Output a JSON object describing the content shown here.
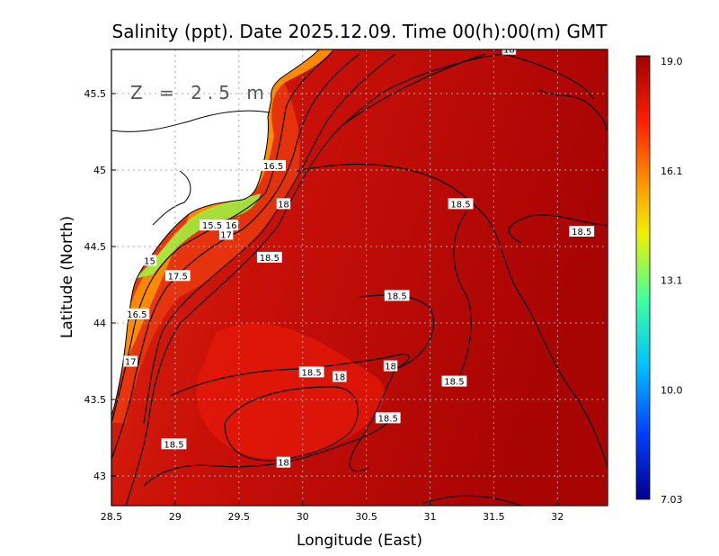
{
  "title": "Salinity (ppt). Date 2025.12.09. Time 00(h):00(m) GMT",
  "depth_label": "Z = 2.5 m",
  "chart_data": {
    "type": "contour-map",
    "variable": "Salinity (ppt)",
    "xlabel": "Longitude (East)",
    "ylabel": "Latitude (North)",
    "xlim": [
      28.5,
      32.4
    ],
    "ylim": [
      42.8,
      45.8
    ],
    "xticks": [
      {
        "v": 28.5,
        "label": "28.5"
      },
      {
        "v": 29,
        "label": "29"
      },
      {
        "v": 29.5,
        "label": "29.5"
      },
      {
        "v": 30,
        "label": "30"
      },
      {
        "v": 30.5,
        "label": "30.5"
      },
      {
        "v": 31,
        "label": "31"
      },
      {
        "v": 31.5,
        "label": "31.5"
      },
      {
        "v": 32,
        "label": "32"
      }
    ],
    "yticks": [
      {
        "v": 43,
        "label": "43"
      },
      {
        "v": 43.5,
        "label": "43.5"
      },
      {
        "v": 44,
        "label": "44"
      },
      {
        "v": 44.5,
        "label": "44.5"
      },
      {
        "v": 45,
        "label": "45"
      },
      {
        "v": 45.5,
        "label": "45.5"
      }
    ],
    "grid": true,
    "colorbar": {
      "min": 7.03,
      "max": 19.0,
      "labels": [
        "19.0",
        "16.1",
        "13.1",
        "10.0",
        "7.03"
      ],
      "colors": [
        "#000090",
        "#0050ff",
        "#00d0ff",
        "#60ff90",
        "#f0f000",
        "#ff9000",
        "#ff2000",
        "#a00000"
      ]
    },
    "contour_labels": [
      {
        "text": "18",
        "lon": 31.62,
        "lat": 45.79
      },
      {
        "text": "16.5",
        "lon": 29.77,
        "lat": 45.03
      },
      {
        "text": "18",
        "lon": 29.85,
        "lat": 44.78
      },
      {
        "text": "18.5",
        "lon": 31.24,
        "lat": 44.78
      },
      {
        "text": "18.5",
        "lon": 32.19,
        "lat": 44.6
      },
      {
        "text": "15.5",
        "lon": 29.29,
        "lat": 44.64
      },
      {
        "text": "16",
        "lon": 29.44,
        "lat": 44.64
      },
      {
        "text": "17",
        "lon": 29.4,
        "lat": 44.58
      },
      {
        "text": "18.5",
        "lon": 29.74,
        "lat": 44.43
      },
      {
        "text": "15",
        "lon": 28.8,
        "lat": 44.41
      },
      {
        "text": "17.5",
        "lon": 29.02,
        "lat": 44.31
      },
      {
        "text": "18.5",
        "lon": 30.74,
        "lat": 44.18
      },
      {
        "text": "16.5",
        "lon": 28.7,
        "lat": 44.06
      },
      {
        "text": "17",
        "lon": 28.65,
        "lat": 43.75
      },
      {
        "text": "18.5",
        "lon": 30.07,
        "lat": 43.68
      },
      {
        "text": "18",
        "lon": 30.29,
        "lat": 43.65
      },
      {
        "text": "18",
        "lon": 30.69,
        "lat": 43.72
      },
      {
        "text": "18.5",
        "lon": 31.19,
        "lat": 43.62
      },
      {
        "text": "18.5",
        "lon": 30.67,
        "lat": 43.38
      },
      {
        "text": "18.5",
        "lon": 28.99,
        "lat": 43.21
      },
      {
        "text": "18",
        "lon": 29.85,
        "lat": 43.09
      }
    ]
  }
}
